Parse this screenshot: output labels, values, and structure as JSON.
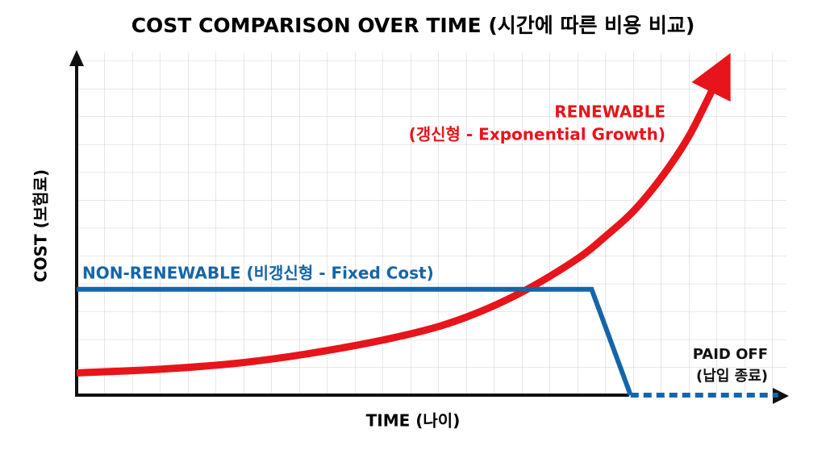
{
  "chart_data": {
    "type": "line",
    "title": "COST COMPARISON OVER TIME (시간에 따른 비용 비교)",
    "x_label": "TIME (나이)",
    "y_label": "COST (보험료)",
    "xlim": [
      0,
      25.5
    ],
    "ylim": [
      0,
      12.3
    ],
    "grid": true,
    "series": [
      {
        "label_lines": [
          "RENEWABLE",
          "(갱신형 - Exponential Growth)"
        ],
        "color": "#e8141b",
        "x": [
          0,
          3,
          6,
          9,
          12,
          14,
          16,
          18,
          19,
          20,
          21,
          22,
          23
        ],
        "values": [
          0.8,
          0.93,
          1.17,
          1.6,
          2.2,
          2.8,
          3.7,
          4.9,
          5.7,
          6.6,
          7.8,
          9.3,
          11.3
        ]
      },
      {
        "label_lines": [
          "NON-RENEWABLE (비갱신형 - Fixed Cost)"
        ],
        "color": "#1565a8",
        "x": [
          0,
          18.5,
          19.9
        ],
        "values": [
          3.8,
          3.8,
          0
        ]
      },
      {
        "label_lines": [
          "PAID OFF",
          "(납입 종료)"
        ],
        "color": "#1565a8",
        "dashed": true,
        "x": [
          19.9,
          25.2
        ],
        "values": [
          0,
          0
        ]
      }
    ]
  }
}
